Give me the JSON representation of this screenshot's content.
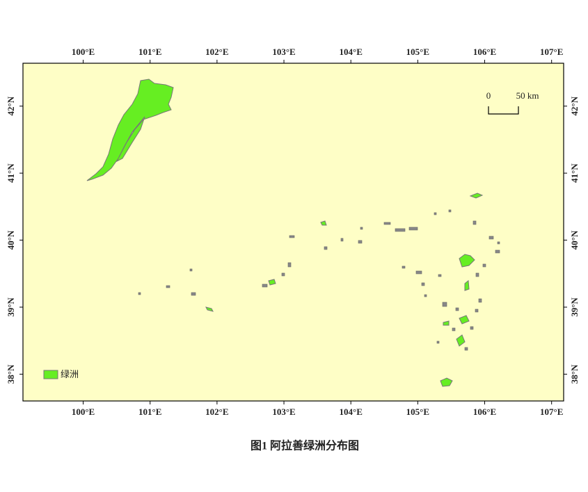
{
  "map": {
    "xlim": [
      99.1,
      107.18
    ],
    "ylim": [
      37.6,
      42.64
    ],
    "xticks": [
      {
        "value": 100,
        "label": "100°E"
      },
      {
        "value": 101,
        "label": "101°E"
      },
      {
        "value": 102,
        "label": "102°E"
      },
      {
        "value": 103,
        "label": "103°E"
      },
      {
        "value": 104,
        "label": "104°E"
      },
      {
        "value": 105,
        "label": "105°E"
      },
      {
        "value": 106,
        "label": "106°E"
      },
      {
        "value": 107,
        "label": "107°E"
      }
    ],
    "yticks": [
      {
        "value": 38,
        "label": "38°N"
      },
      {
        "value": 39,
        "label": "39°N"
      },
      {
        "value": 40,
        "label": "40°N"
      },
      {
        "value": 41,
        "label": "41°N"
      },
      {
        "value": 42,
        "label": "42°N"
      }
    ],
    "scale_bar": {
      "start": "0",
      "end": "50 km"
    },
    "legend": {
      "label": "绿洲"
    },
    "caption": "图1  阿拉善绿洲分布图"
  }
}
